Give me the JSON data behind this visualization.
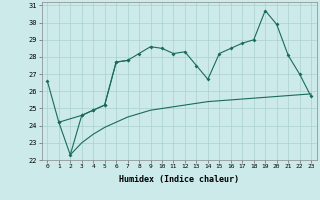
{
  "xlabel": "Humidex (Indice chaleur)",
  "xlim": [
    -0.5,
    23.5
  ],
  "ylim": [
    22,
    31.2
  ],
  "yticks": [
    22,
    23,
    24,
    25,
    26,
    27,
    28,
    29,
    30,
    31
  ],
  "xticks": [
    0,
    1,
    2,
    3,
    4,
    5,
    6,
    7,
    8,
    9,
    10,
    11,
    12,
    13,
    14,
    15,
    16,
    17,
    18,
    19,
    20,
    21,
    22,
    23
  ],
  "bg_color": "#cceaea",
  "line_color": "#1a6b5a",
  "grid_color": "#aacfcf",
  "series1_x": [
    0,
    1,
    3,
    4,
    5,
    6,
    7,
    8,
    9,
    10,
    11,
    12,
    13,
    14,
    15,
    16,
    17,
    18,
    19,
    20,
    21,
    22,
    23
  ],
  "series1_y": [
    26.6,
    24.2,
    24.6,
    24.9,
    25.2,
    27.7,
    27.8,
    28.2,
    28.6,
    28.5,
    28.2,
    28.3,
    27.5,
    26.7,
    28.2,
    28.5,
    28.8,
    29.0,
    30.7,
    29.9,
    28.1,
    27.0,
    25.7
  ],
  "series2_x": [
    1,
    2,
    3,
    4,
    5,
    6,
    7
  ],
  "series2_y": [
    24.2,
    22.3,
    24.6,
    24.9,
    25.2,
    27.7,
    27.8
  ],
  "series3_x": [
    2,
    3,
    4,
    5,
    6,
    7,
    8,
    9,
    10,
    11,
    12,
    13,
    14,
    15,
    16,
    17,
    18,
    19,
    20,
    21,
    22,
    23
  ],
  "series3_y": [
    22.3,
    23.0,
    23.5,
    23.9,
    24.2,
    24.5,
    24.7,
    24.9,
    25.0,
    25.1,
    25.2,
    25.3,
    25.4,
    25.45,
    25.5,
    25.55,
    25.6,
    25.65,
    25.7,
    25.75,
    25.8,
    25.85
  ]
}
